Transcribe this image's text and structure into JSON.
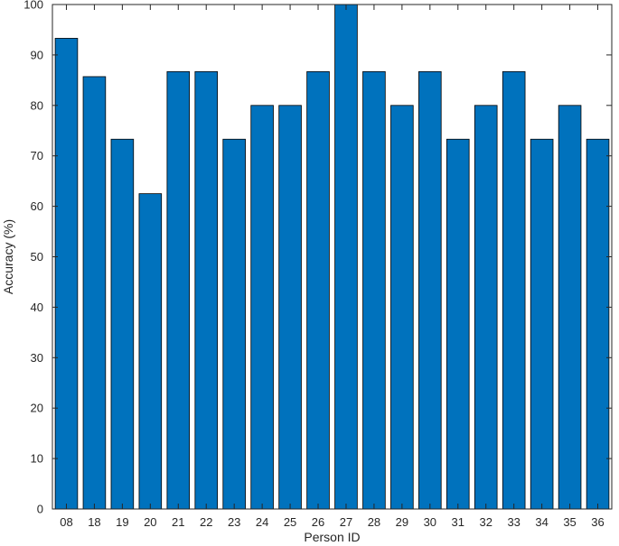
{
  "chart_data": {
    "type": "bar",
    "title": "",
    "xlabel": "Person ID",
    "ylabel": "Accuracy (%)",
    "categories": [
      "08",
      "18",
      "19",
      "20",
      "21",
      "22",
      "23",
      "24",
      "25",
      "26",
      "27",
      "28",
      "29",
      "30",
      "31",
      "32",
      "33",
      "34",
      "35",
      "36"
    ],
    "values": [
      93.3,
      85.7,
      73.3,
      62.5,
      86.7,
      86.7,
      73.3,
      80.0,
      80.0,
      86.7,
      100.0,
      86.7,
      80.0,
      86.7,
      73.3,
      80.0,
      86.7,
      73.3,
      80.0,
      73.3
    ],
    "ylim": [
      0,
      100
    ],
    "yticks": [
      0,
      10,
      20,
      30,
      40,
      50,
      60,
      70,
      80,
      90,
      100
    ],
    "grid": false,
    "legend": "none",
    "bar_color": "#0072BD"
  }
}
